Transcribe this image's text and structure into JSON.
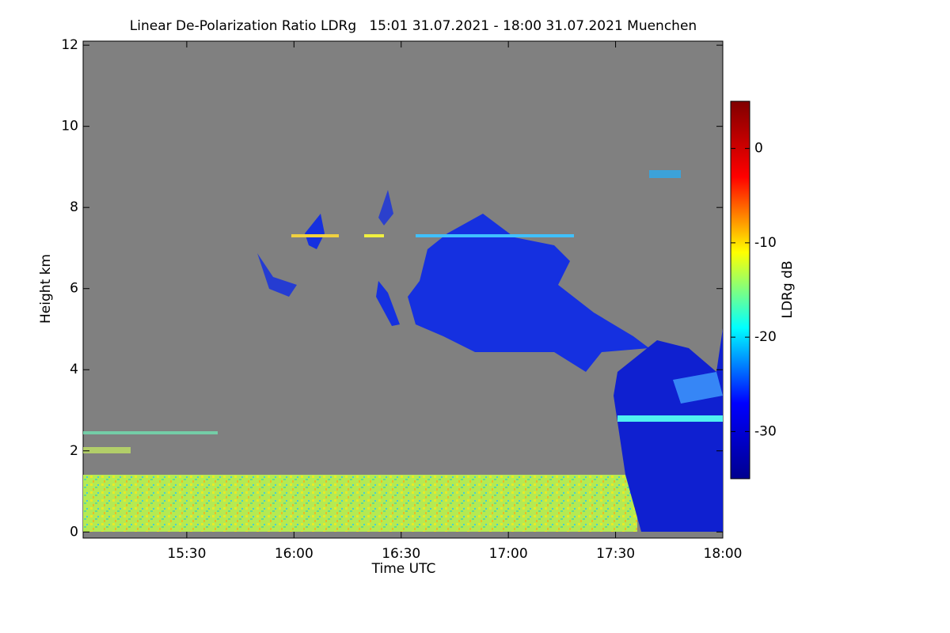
{
  "chart_data": {
    "type": "heatmap",
    "title": "Linear De-Polarization Ratio LDRg   15:01 31.07.2021 - 18:00 31.07.2021 Muenchen",
    "x_label": "Time UTC",
    "y_label": "Height km",
    "colorbar_label": "LDRg dB",
    "xlim": [
      901,
      1080
    ],
    "xticks": [
      {
        "value": 930,
        "label": "15:30"
      },
      {
        "value": 960,
        "label": "16:00"
      },
      {
        "value": 990,
        "label": "16:30"
      },
      {
        "value": 1020,
        "label": "17:00"
      },
      {
        "value": 1050,
        "label": "17:30"
      },
      {
        "value": 1080,
        "label": "18:00"
      }
    ],
    "ylim": [
      -0.15,
      12.1
    ],
    "yticks": [
      0,
      2,
      4,
      6,
      8,
      10,
      12
    ],
    "zlim": [
      -35,
      5
    ],
    "zticks": [
      0,
      -10,
      -20,
      -30
    ],
    "colormap": [
      "#00008f",
      "#0000ff",
      "#00ffff",
      "#ffff00",
      "#ff0000",
      "#800000"
    ],
    "background": "#808080"
  }
}
